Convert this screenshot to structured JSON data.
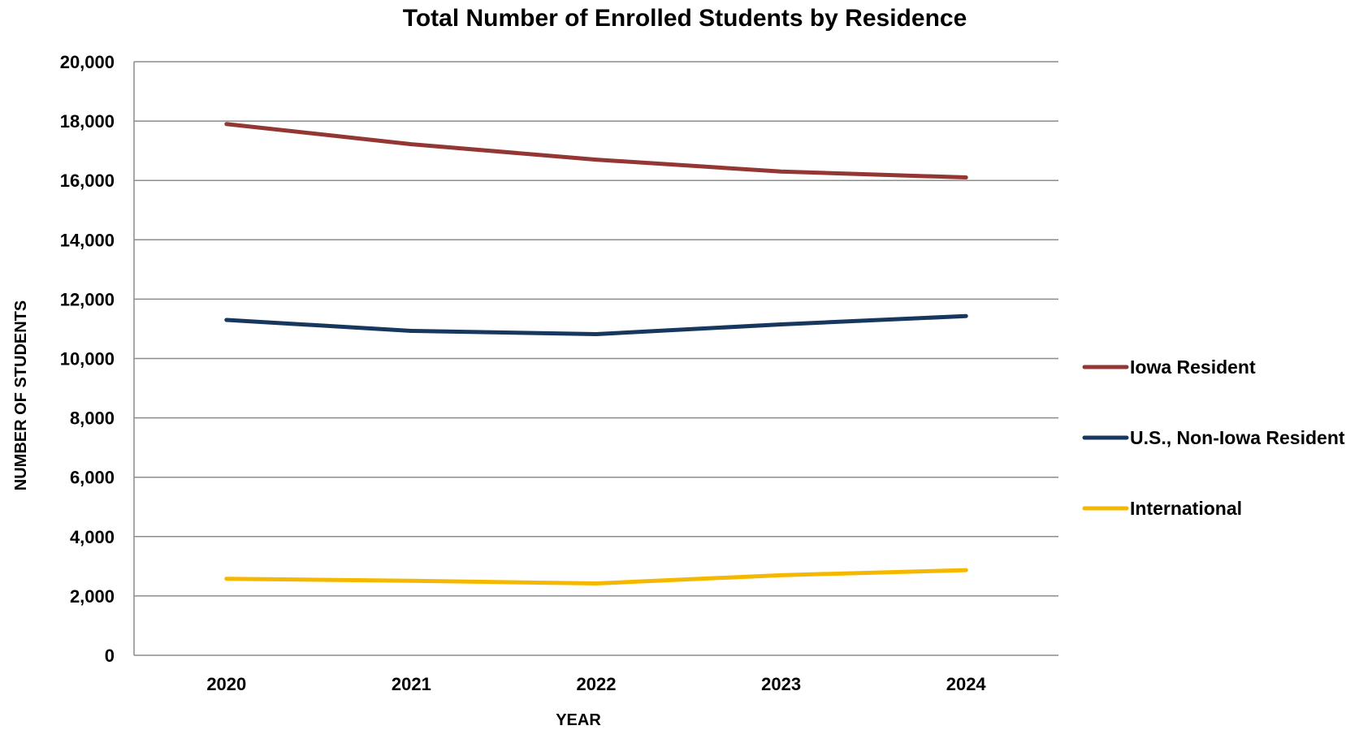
{
  "chart_data": {
    "type": "line",
    "title": "Total Number of Enrolled Students by Residence",
    "xlabel": "YEAR",
    "ylabel": "NUMBER OF STUDENTS",
    "categories": [
      "2020",
      "2021",
      "2022",
      "2023",
      "2024"
    ],
    "ylim": [
      0,
      20000
    ],
    "yticks": [
      0,
      2000,
      4000,
      6000,
      8000,
      10000,
      12000,
      14000,
      16000,
      18000,
      20000
    ],
    "ytick_labels": [
      "0",
      "2,000",
      "4,000",
      "6,000",
      "8,000",
      "10,000",
      "12,000",
      "14,000",
      "16,000",
      "18,000",
      "20,000"
    ],
    "grid": true,
    "legend_position": "right",
    "series": [
      {
        "name": "Iowa Resident",
        "color": "#943634",
        "values": [
          17900,
          17220,
          16700,
          16300,
          16100
        ]
      },
      {
        "name": "U.S., Non-Iowa Resident",
        "color": "#17375e",
        "values": [
          11300,
          10930,
          10820,
          11150,
          11430
        ]
      },
      {
        "name": "International",
        "color": "#f5b800",
        "values": [
          2580,
          2510,
          2420,
          2700,
          2870
        ]
      }
    ]
  }
}
